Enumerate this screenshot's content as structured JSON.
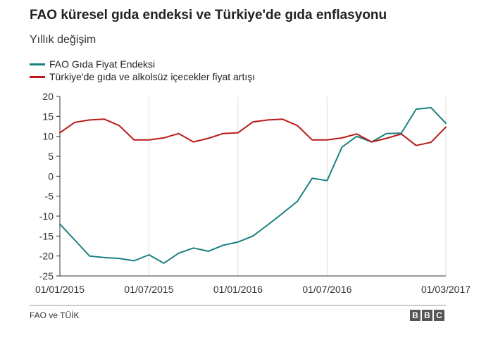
{
  "title": "FAO küresel gıda endeksi ve Türkiye'de gıda enflasyonu",
  "subtitle": "Yıllık değişim",
  "source": "FAO ve TÜİK",
  "logo": [
    "B",
    "B",
    "C"
  ],
  "chart_data": {
    "type": "line",
    "title": "FAO küresel gıda endeksi ve Türkiye'de gıda enflasyonu",
    "subtitle": "Yıllık değişim",
    "x": [
      "01/2015",
      "02/2015",
      "03/2015",
      "04/2015",
      "05/2015",
      "06/2015",
      "07/2015",
      "08/2015",
      "09/2015",
      "10/2015",
      "11/2015",
      "12/2015",
      "01/2016",
      "02/2016",
      "03/2016",
      "04/2016",
      "05/2016",
      "06/2016",
      "07/2016",
      "08/2016",
      "09/2016",
      "10/2016",
      "11/2016",
      "12/2016",
      "01/2017",
      "02/2017",
      "03/2017"
    ],
    "x_tick_labels": [
      "01/01/2015",
      "01/07/2015",
      "01/01/2016",
      "01/07/2016",
      "01/03/2017"
    ],
    "x_tick_indices": [
      0,
      6,
      12,
      18,
      26
    ],
    "ylim": [
      -25,
      20
    ],
    "y_ticks": [
      "20",
      "15",
      "10",
      "5",
      "0",
      "-5",
      "-10",
      "-15",
      "-20",
      "-25"
    ],
    "y_tick_values": [
      20,
      15,
      10,
      5,
      0,
      -5,
      -10,
      -15,
      -20,
      -25
    ],
    "grid": "vertical",
    "legend": "top-left",
    "series": [
      {
        "name": "FAO Gıda Fiyat Endeksi",
        "color": "#1a8080",
        "values": [
          -12,
          -16,
          -20,
          -20.4,
          -20.6,
          -21.2,
          -19.7,
          -21.8,
          -19.3,
          -18,
          -18.8,
          -17.3,
          -16.5,
          -15,
          -12.2,
          -9.3,
          -6.3,
          -0.5,
          -1.1,
          7.3,
          10,
          8.6,
          10.7,
          10.8,
          16.8,
          17.2,
          13.3
        ]
      },
      {
        "name": "Türkiye'de gıda ve alkolsüz içecekler fiyat artışı",
        "color": "#bb1919",
        "values": [
          10.9,
          13.5,
          14.1,
          14.3,
          12.7,
          9.1,
          9.1,
          9.6,
          10.7,
          8.6,
          9.5,
          10.7,
          10.9,
          13.6,
          14.1,
          14.3,
          12.7,
          9.1,
          9.1,
          9.6,
          10.6,
          8.6,
          9.5,
          10.6,
          7.7,
          8.5,
          12.3
        ]
      }
    ]
  }
}
